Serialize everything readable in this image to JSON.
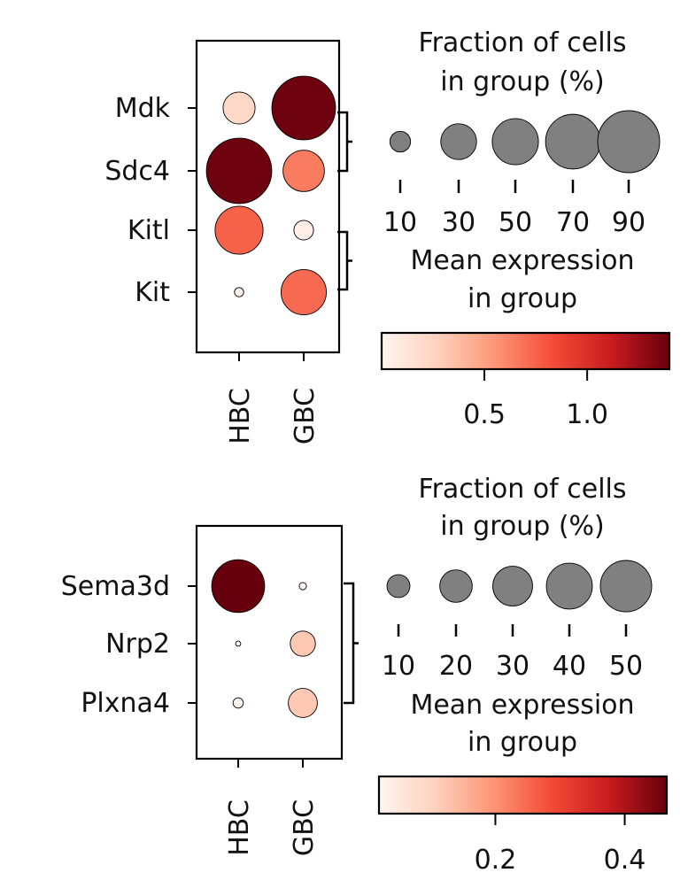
{
  "colors": {
    "dot_fill": "#808080",
    "dot_stroke": "#000000",
    "cmap": [
      "#fff5f0",
      "#fdd0bc",
      "#fc9474",
      "#f34a36",
      "#c81b1f",
      "#67000d"
    ]
  },
  "chart_data": [
    {
      "type": "dotplot",
      "genes": [
        "Mdk",
        "Sdc4",
        "Kitl",
        "Kit"
      ],
      "groups": [
        "HBC",
        "GBC"
      ],
      "gene_pairs": [
        [
          0,
          1
        ],
        [
          2,
          3
        ]
      ],
      "fraction_pct": [
        [
          24,
          95
        ],
        [
          100,
          40
        ],
        [
          54,
          9
        ],
        [
          2,
          48
        ]
      ],
      "mean_expression": [
        [
          0.22,
          1.38
        ],
        [
          1.38,
          0.65
        ],
        [
          0.75,
          0.05
        ],
        [
          0.02,
          0.72
        ]
      ],
      "size_legend": {
        "title_lines": [
          "Fraction of cells",
          "in group (%)"
        ],
        "values": [
          10,
          30,
          50,
          70,
          90
        ],
        "tick_labels": [
          "10",
          "30",
          "50",
          "70",
          "90"
        ],
        "max_pct": 90
      },
      "color_legend": {
        "title_lines": [
          "Mean expression",
          "in group"
        ],
        "vmin": 0.0,
        "vmax": 1.4,
        "ticks": [
          0.5,
          1.0
        ],
        "tick_labels": [
          "0.5",
          "1.0"
        ]
      }
    },
    {
      "type": "dotplot",
      "genes": [
        "Sema3d",
        "Nrp2",
        "Plxna4"
      ],
      "groups": [
        "HBC",
        "GBC"
      ],
      "gene_pairs": [
        [
          0,
          2
        ]
      ],
      "fraction_pct": [
        [
          53,
          1
        ],
        [
          0.5,
          12
        ],
        [
          2,
          16
        ]
      ],
      "mean_expression": [
        [
          0.47,
          0.0
        ],
        [
          0.0,
          0.12
        ],
        [
          0.0,
          0.12
        ]
      ],
      "size_legend": {
        "title_lines": [
          "Fraction of cells",
          "in group (%)"
        ],
        "values": [
          10,
          20,
          30,
          40,
          50
        ],
        "tick_labels": [
          "10",
          "20",
          "30",
          "40",
          "50"
        ],
        "max_pct": 50
      },
      "color_legend": {
        "title_lines": [
          "Mean expression",
          "in group"
        ],
        "vmin": 0.02,
        "vmax": 0.465,
        "ticks": [
          0.2,
          0.4
        ],
        "tick_labels": [
          "0.2",
          "0.4"
        ]
      }
    }
  ]
}
